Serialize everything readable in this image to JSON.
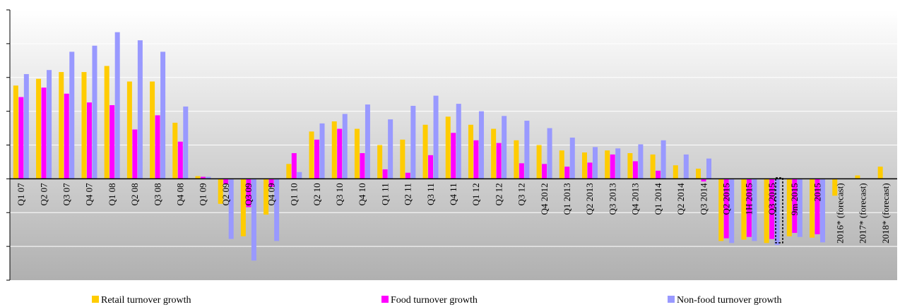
{
  "chart_data": {
    "type": "bar",
    "categories": [
      "Q1 07",
      "Q2 07",
      "Q3 07",
      "Q4 07",
      "Q1 08",
      "Q2 08",
      "Q3 08",
      "Q4 08",
      "Q1 09",
      "Q2 09",
      "Q3 09",
      "Q4 09",
      "Q1 10",
      "Q2 10",
      "Q3 10",
      "Q4 10",
      "Q1 11",
      "Q2 11",
      "Q3 11",
      "Q4 11",
      "Q1 12",
      "Q2 12",
      "Q3 12",
      "Q4 2012",
      "Q1 2013",
      "Q2 2013",
      "Q3 2013",
      "Q4 2013",
      "Q1 2014",
      "Q2 2014",
      "Q3 2014",
      "Q2 2015",
      "1H 2015",
      "Q3 2015",
      "9m 2015",
      "2015",
      "2016* (forecast)",
      "2017* (forecast)",
      "2018* (forecast)"
    ],
    "series": [
      {
        "name": "Retail turnover growth",
        "color": "#FFCC00",
        "values": [
          13.8,
          14.8,
          15.8,
          15.8,
          16.7,
          14.4,
          14.4,
          8.3,
          0.4,
          -3.7,
          -8.5,
          -5.3,
          2.2,
          7.0,
          8.5,
          7.4,
          5.0,
          5.8,
          8.0,
          9.2,
          8.0,
          7.4,
          5.7,
          5.0,
          4.2,
          3.9,
          4.2,
          3.8,
          3.6,
          2.0,
          1.5,
          -9.2,
          -9.0,
          -9.5,
          -8.5,
          -8.7,
          -2.5,
          0.5,
          1.8
        ]
      },
      {
        "name": "Food turnover growth",
        "color": "#FF00FF",
        "values": [
          12.1,
          13.5,
          12.6,
          11.3,
          10.9,
          7.3,
          9.4,
          5.5,
          0.3,
          -0.8,
          -4.2,
          -1.2,
          3.8,
          5.8,
          7.4,
          3.8,
          1.4,
          0.9,
          3.5,
          6.8,
          5.7,
          5.3,
          2.3,
          2.2,
          1.8,
          2.4,
          3.6,
          2.6,
          1.2,
          0,
          -0.4,
          -8.8,
          -8.6,
          -8.9,
          -8.0,
          -8.2,
          0,
          0,
          0
        ]
      },
      {
        "name": "Non-food turnover growth",
        "color": "#9999FF",
        "values": [
          15.5,
          16.1,
          18.8,
          19.7,
          21.7,
          20.5,
          18.8,
          10.7,
          0.3,
          -8.9,
          -12.1,
          -9.2,
          1.0,
          8.2,
          9.6,
          11.0,
          8.8,
          10.8,
          12.3,
          11.1,
          10.0,
          9.3,
          8.6,
          7.5,
          6.1,
          4.7,
          4.5,
          5.1,
          5.7,
          3.6,
          3.0,
          -9.5,
          -9.2,
          -9.8,
          -8.6,
          -9.4,
          0,
          0,
          0
        ]
      }
    ],
    "ylim": [
      -15,
      25
    ],
    "grid": true,
    "legend_position": "bottom"
  }
}
